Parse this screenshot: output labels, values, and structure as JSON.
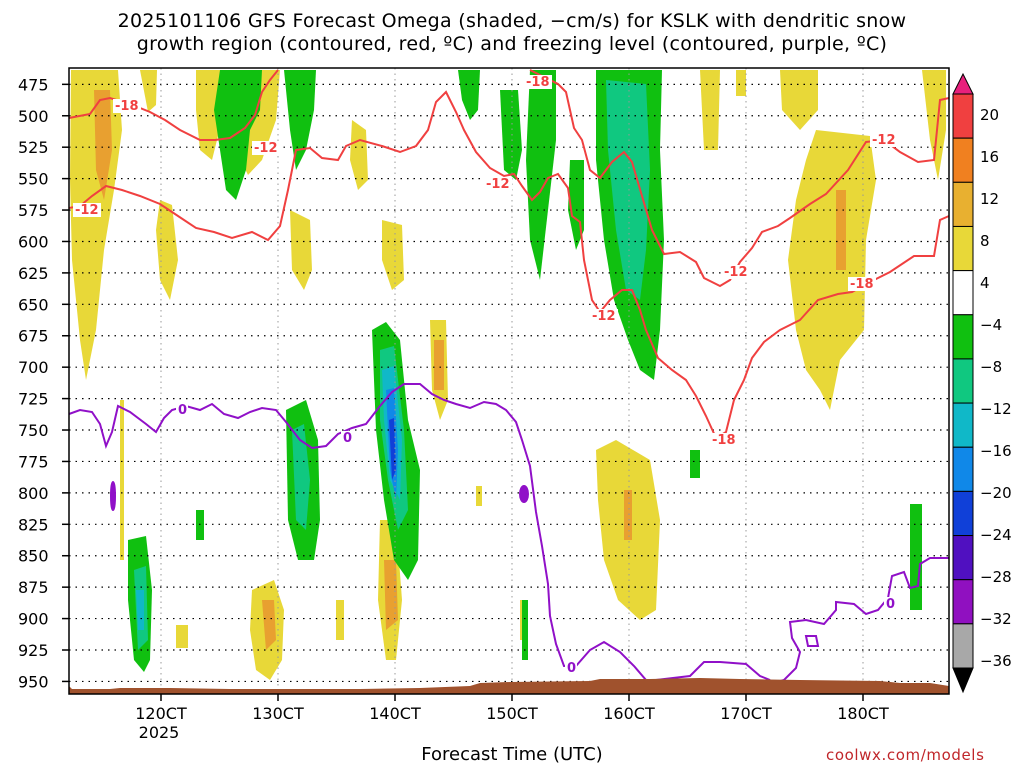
{
  "title": {
    "line1": "2025101106 GFS Forecast Omega (shaded, −cm/s) for KSLK with dendritic snow",
    "line2": "growth region (contoured, red, ºC) and freezing level (contoured, purple, ºC)"
  },
  "xlabel": "Forecast Time (UTC)",
  "credit": "coolwx.com/models",
  "chart_data": {
    "type": "heatmap",
    "title": "2025101106 GFS Forecast Omega (shaded, −cm/s) for KSLK with dendritic snow growth region (contoured, red, ºC) and freezing level (contoured, purple, ºC)",
    "xlabel": "Forecast Time (UTC)",
    "ylabel": "",
    "x_ticks": [
      "120CT",
      "130CT",
      "140CT",
      "150CT",
      "160CT",
      "170CT",
      "180CT"
    ],
    "x_tick_sub": "2025",
    "y_ticks": [
      475,
      500,
      525,
      550,
      575,
      600,
      625,
      650,
      675,
      700,
      725,
      750,
      775,
      800,
      825,
      850,
      875,
      900,
      925,
      950
    ],
    "ylim": [
      462,
      960
    ],
    "y_inverted": true,
    "grid": true,
    "colorbar": {
      "levels": [
        20,
        16,
        12,
        8,
        4,
        -4,
        -8,
        -12,
        -16,
        -20,
        -24,
        -28,
        -32,
        -36
      ],
      "colors": [
        "#e8207c",
        "#f04040",
        "#f08020",
        "#e8b030",
        "#e8d838",
        "#ffffff",
        "#10c010",
        "#10c880",
        "#10b8c8",
        "#1088e8",
        "#1040d8",
        "#5010c0",
        "#9010c0",
        "#a8a8a8",
        "#000000"
      ]
    },
    "contour_colors": {
      "dendritic": "#f04040",
      "freezing": "#9010c8",
      "terrain": "#a0522d"
    },
    "contour_labels": {
      "dgz": [
        "-18",
        "-12",
        "-12",
        "-12",
        "-18",
        "-12",
        "-12",
        "-18",
        "-12",
        "-18"
      ],
      "freezing": [
        "0",
        "0",
        "0",
        "0"
      ]
    }
  }
}
